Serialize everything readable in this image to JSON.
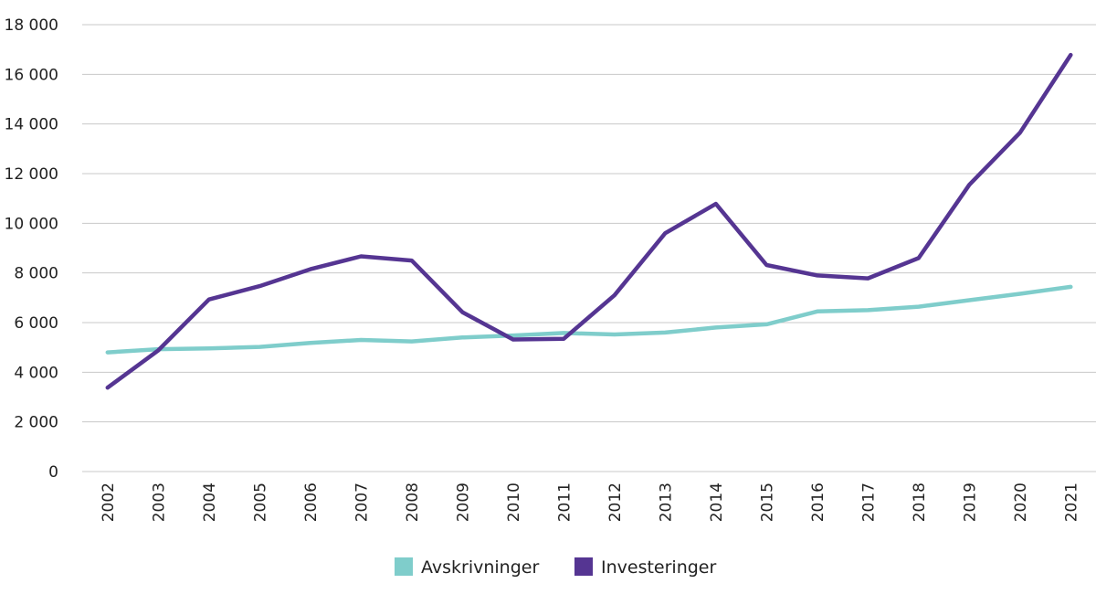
{
  "chart_data": {
    "type": "line",
    "x": [
      "2002",
      "2003",
      "2004",
      "2005",
      "2006",
      "2007",
      "2008",
      "2009",
      "2010",
      "2011",
      "2012",
      "2013",
      "2014",
      "2015",
      "2016",
      "2017",
      "2018",
      "2019",
      "2020",
      "2021"
    ],
    "series": [
      {
        "name": "Avskrivninger",
        "color": "#7fcdcb",
        "values": [
          4800,
          4930,
          4960,
          5020,
          5180,
          5300,
          5240,
          5400,
          5480,
          5580,
          5520,
          5600,
          5800,
          5930,
          6450,
          6500,
          6640,
          6900,
          7160,
          7440
        ]
      },
      {
        "name": "Investeringer",
        "color": "#553592",
        "values": [
          3380,
          4880,
          6930,
          7470,
          8150,
          8670,
          8500,
          6420,
          5320,
          5350,
          7100,
          9600,
          10780,
          8320,
          7900,
          7780,
          8600,
          11550,
          13650,
          16780
        ]
      }
    ],
    "yticks": [
      "0",
      "2 000",
      "4 000",
      "6 000",
      "8 000",
      "10 000",
      "12 000",
      "14 000",
      "16 000",
      "18 000"
    ],
    "ylim": [
      0,
      18000
    ],
    "grid": true,
    "legend_position": "bottom-center"
  }
}
